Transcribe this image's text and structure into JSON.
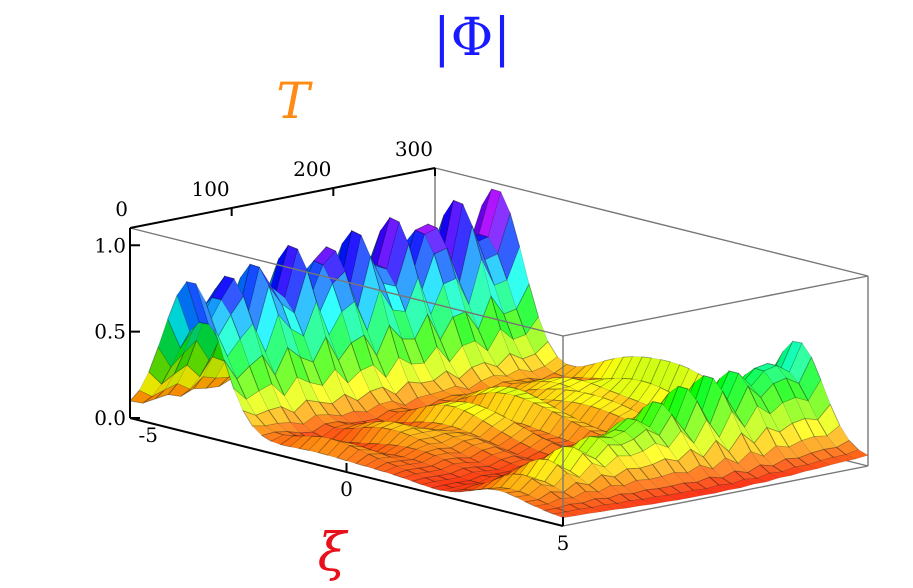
{
  "chart_data": {
    "type": "surface",
    "title": "|Φ|",
    "xlabel": "ξ",
    "ylabel": "T",
    "zlabel": "",
    "x_range": [
      -5,
      5
    ],
    "y_range": [
      0,
      300
    ],
    "z_range": [
      0,
      1.1
    ],
    "x_ticks": [
      "-5",
      "0",
      "5"
    ],
    "y_ticks": [
      "0",
      "100",
      "200",
      "300"
    ],
    "z_ticks": [
      "0.0",
      "0.5",
      "1.0"
    ],
    "colormap": "hue (red at 0, yellow, green, cyan, blue, magenta at max)",
    "grid": false,
    "box": true,
    "peaks": [
      {
        "name": "central-ridge",
        "x": -3.6,
        "amplitude_start": 0.85,
        "amplitude_end": 1.08
      },
      {
        "name": "secondary-ridge",
        "x": 3.4,
        "amplitude_start": 0.1,
        "amplitude_end": 0.65
      }
    ]
  }
}
